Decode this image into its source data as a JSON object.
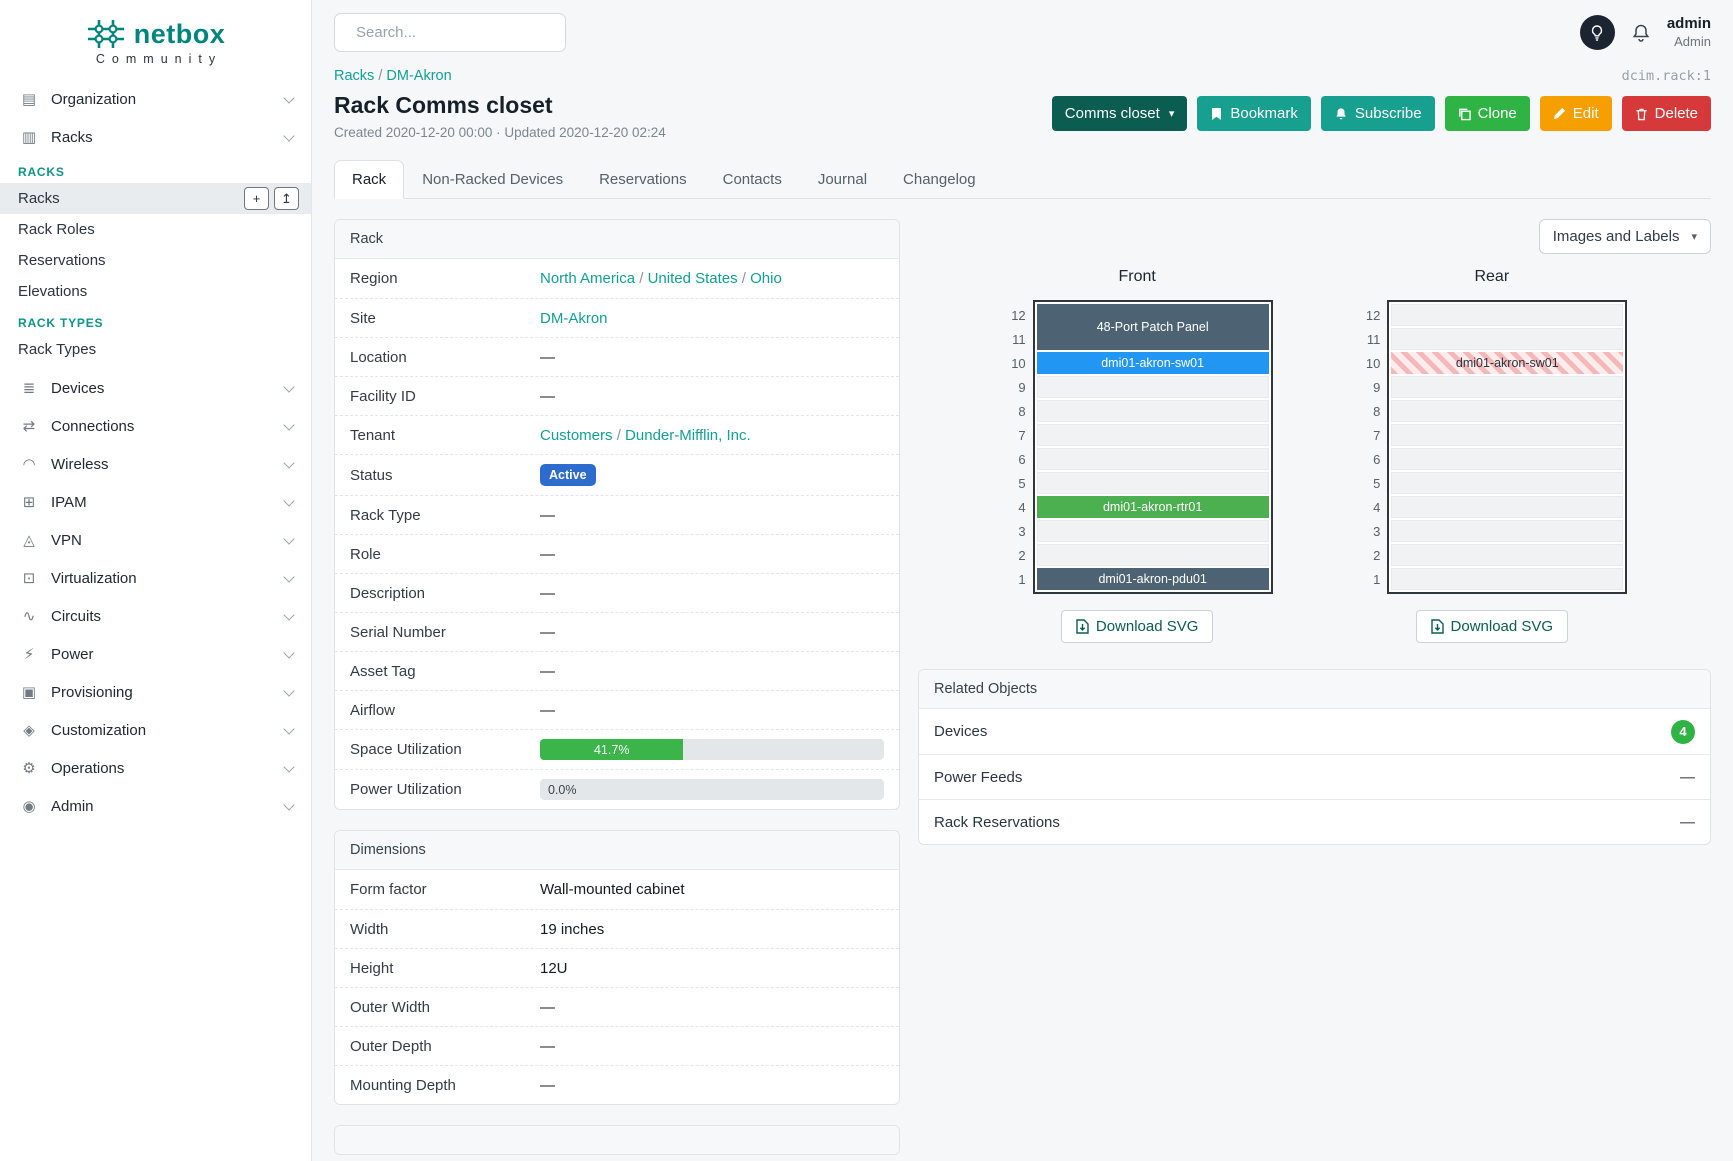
{
  "colors": {
    "brand_teal": "#00857e",
    "link_teal": "#12a094",
    "btn_dark_teal": "#0b5d52",
    "btn_teal": "#17a08f",
    "btn_green": "#2fb344",
    "btn_orange": "#f59f00",
    "btn_red": "#d63939",
    "status_badge_blue": "#2d6ccd",
    "progress_green": "#3bb54a",
    "device_slate": "#4d6373",
    "device_blue": "#2196f3",
    "device_green": "#4caf50",
    "device_stripe_red": "#f5b8b8",
    "count_badge_green": "#2fb344"
  },
  "sidebar": {
    "brand": "netbox",
    "brand_sub": "Community",
    "groups": [
      "Organization",
      "Racks",
      "Devices",
      "Connections",
      "Wireless",
      "IPAM",
      "VPN",
      "Virtualization",
      "Circuits",
      "Power",
      "Provisioning",
      "Customization",
      "Operations",
      "Admin"
    ],
    "icons": [
      "▤",
      "▥",
      "≣",
      "⇄",
      "◠",
      "⊞",
      "◬",
      "⊡",
      "∿",
      "⚡",
      "▣",
      "◈",
      "⚙",
      "◉"
    ],
    "racks_panel": {
      "header1": "Racks",
      "items1": [
        "Racks",
        "Rack Roles",
        "Reservations",
        "Elevations"
      ],
      "header2": "Rack Types",
      "items2": [
        "Rack Types"
      ],
      "add_glyph": "+",
      "import_glyph": "↥"
    }
  },
  "topbar": {
    "search_placeholder": "Search...",
    "username": "admin",
    "userrole": "Admin"
  },
  "breadcrumb": [
    "Racks",
    "DM-Akron"
  ],
  "object_id": "dcim.rack:1",
  "page": {
    "title": "Rack Comms closet",
    "meta": "Created 2020-12-20 00:00 · Updated 2020-12-20 02:24"
  },
  "actions": {
    "selector": "Comms closet",
    "bookmark": "Bookmark",
    "subscribe": "Subscribe",
    "clone": "Clone",
    "edit": "Edit",
    "delete": "Delete",
    "caret": "▾"
  },
  "tabs": [
    "Rack",
    "Non-Racked Devices",
    "Reservations",
    "Contacts",
    "Journal",
    "Changelog"
  ],
  "rack_card": {
    "title": "Rack",
    "labels": [
      "Region",
      "Site",
      "Location",
      "Facility ID",
      "Tenant",
      "Status",
      "Rack Type",
      "Role",
      "Description",
      "Serial Number",
      "Asset Tag",
      "Airflow",
      "Space Utilization",
      "Power Utilization"
    ],
    "region_links": [
      "North America",
      "United States",
      "Ohio"
    ],
    "site_link": "DM-Akron",
    "tenant_links": [
      "Customers",
      "Dunder-Mifflin, Inc."
    ],
    "status_badge": "Active",
    "empty": "—",
    "space_pct": 41.7,
    "space_text": "41.7%",
    "power_pct": 0,
    "power_text": "0.0%"
  },
  "dimensions_card": {
    "title": "Dimensions",
    "labels": [
      "Form factor",
      "Width",
      "Height",
      "Outer Width",
      "Outer Depth",
      "Mounting Depth"
    ],
    "values": [
      "Wall-mounted cabinet",
      "19 inches",
      "12U",
      "—",
      "—",
      "—"
    ]
  },
  "elevations": {
    "selector_label": "Images and Labels",
    "front_title": "Front",
    "rear_title": "Rear",
    "units": [
      "12",
      "11",
      "10",
      "9",
      "8",
      "7",
      "6",
      "5",
      "4",
      "3",
      "2",
      "1"
    ],
    "front": {
      "patch_panel": "48-Port Patch Panel",
      "switch": "dmi01-akron-sw01",
      "router": "dmi01-akron-rtr01",
      "pdu": "dmi01-akron-pdu01"
    },
    "rear": {
      "switch": "dmi01-akron-sw01"
    },
    "download": "Download SVG"
  },
  "related_card": {
    "title": "Related Objects",
    "rows": [
      {
        "label": "Devices",
        "value": "4"
      },
      {
        "label": "Power Feeds",
        "value": "—"
      },
      {
        "label": "Rack Reservations",
        "value": "—"
      }
    ]
  }
}
